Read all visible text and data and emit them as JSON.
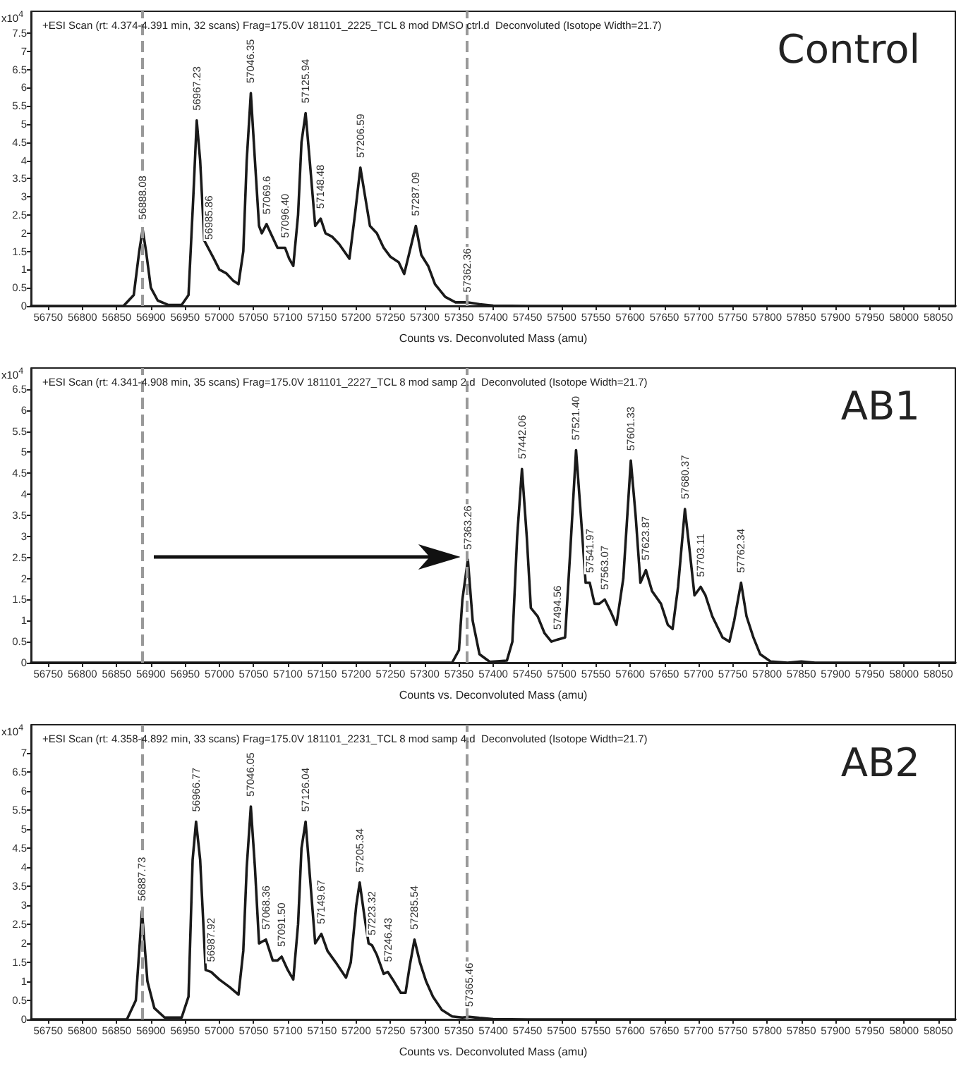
{
  "chart_data": [
    {
      "type": "line",
      "title": "Control",
      "subtitle": "+ESI Scan (rt: 4.374-4.391 min, 32 scans) Frag=175.0V 181101_2225_TCL 8 mod DMSO ctrl.d  Deconvoluted (Isotope Width=21.7)",
      "xlabel": "Counts vs. Deconvoluted Mass (amu)",
      "ylabel": "x10$^{4}$",
      "x": [
        56725,
        56860,
        56875,
        56883,
        56888,
        56893,
        56900,
        56910,
        56925,
        56945,
        56955,
        56962,
        56967,
        56972,
        56978,
        56985,
        56992,
        57000,
        57010,
        57020,
        57028,
        57035,
        57040,
        57046,
        57052,
        57058,
        57062,
        57069,
        57075,
        57085,
        57096,
        57102,
        57108,
        57115,
        57120,
        57126,
        57132,
        57140,
        57148,
        57155,
        57165,
        57175,
        57190,
        57198,
        57206,
        57213,
        57220,
        57230,
        57240,
        57250,
        57262,
        57270,
        57278,
        57287,
        57295,
        57305,
        57315,
        57330,
        57345,
        57362,
        57380,
        57400,
        57450,
        58075
      ],
      "series": [
        {
          "color": "#1a1a1a",
          "values": [
            0,
            0,
            0.3,
            1.5,
            2.1,
            1.5,
            0.5,
            0.15,
            0.03,
            0.03,
            0.3,
            3.0,
            5.1,
            4.0,
            1.8,
            1.55,
            1.3,
            1.0,
            0.9,
            0.7,
            0.6,
            1.5,
            4.0,
            5.85,
            4.0,
            2.2,
            2.0,
            2.25,
            2.0,
            1.6,
            1.6,
            1.3,
            1.1,
            2.5,
            4.5,
            5.3,
            4.0,
            2.2,
            2.4,
            2.0,
            1.9,
            1.7,
            1.3,
            2.5,
            3.8,
            3.0,
            2.2,
            2.0,
            1.6,
            1.35,
            1.2,
            0.88,
            1.5,
            2.2,
            1.4,
            1.1,
            0.6,
            0.25,
            0.1,
            0.1,
            0.05,
            0.01,
            0,
            0
          ]
        }
      ],
      "annotations": [
        {
          "text": "56888.08",
          "x": 56888,
          "y": 2.1
        },
        {
          "text": "56967.23",
          "x": 56967,
          "y": 5.1
        },
        {
          "text": "56985.86",
          "x": 56985,
          "y": 1.55
        },
        {
          "text": "57046.35",
          "x": 57046,
          "y": 5.85
        },
        {
          "text": "57069.6",
          "x": 57069,
          "y": 2.25
        },
        {
          "text": "57096.40",
          "x": 57096,
          "y": 1.6
        },
        {
          "text": "57125.94",
          "x": 57126,
          "y": 5.3
        },
        {
          "text": "57148.48",
          "x": 57148,
          "y": 2.4
        },
        {
          "text": "57206.59",
          "x": 57206,
          "y": 3.8
        },
        {
          "text": "57287.09",
          "x": 57287,
          "y": 2.2
        },
        {
          "text": "57362.36",
          "x": 57362,
          "y": 0.1
        }
      ],
      "ref_lines": [
        {
          "axis": "x",
          "value": 56887,
          "color": "#999999",
          "line_style": "dashed"
        },
        {
          "axis": "x",
          "value": 57362,
          "color": "#999999",
          "line_style": "dashed"
        }
      ],
      "xlim": [
        56725,
        58075
      ],
      "xticks": [
        56750,
        56800,
        56850,
        56900,
        56950,
        57000,
        57050,
        57100,
        57150,
        57200,
        57250,
        57300,
        57350,
        57400,
        57450,
        57500,
        57550,
        57600,
        57650,
        57700,
        57750,
        57800,
        57850,
        57900,
        57950,
        58000,
        58050
      ],
      "ylim": [
        0,
        8.1
      ],
      "yticks": [
        0,
        0.5,
        1,
        1.5,
        2,
        2.5,
        3,
        3.5,
        4,
        4.5,
        5,
        5.5,
        6,
        6.5,
        7,
        7.5
      ],
      "grid": false,
      "marker": "none",
      "line_style": "solid"
    },
    {
      "type": "line",
      "title": "AB1",
      "subtitle": "+ESI Scan (rt: 4.341-4.908 min, 35 scans) Frag=175.0V 181101_2227_TCL 8 mod samp 2.d  Deconvoluted (Isotope Width=21.7)",
      "xlabel": "Counts vs. Deconvoluted Mass (amu)",
      "ylabel": "x10$^{4}$",
      "x": [
        56725,
        57340,
        57350,
        57355,
        57363,
        57370,
        57380,
        57395,
        57420,
        57428,
        57435,
        57442,
        57449,
        57455,
        57465,
        57475,
        57485,
        57494,
        57505,
        57512,
        57521,
        57528,
        57535,
        57541,
        57548,
        57555,
        57563,
        57572,
        57580,
        57590,
        57601,
        57608,
        57615,
        57623,
        57632,
        57645,
        57655,
        57662,
        57670,
        57680,
        57688,
        57694,
        57703,
        57710,
        57720,
        57735,
        57745,
        57752,
        57762,
        57770,
        57780,
        57790,
        57805,
        57830,
        57850,
        57870,
        58075
      ],
      "series": [
        {
          "color": "#1a1a1a",
          "values": [
            0,
            0,
            0.3,
            1.5,
            2.45,
            1.0,
            0.2,
            0.02,
            0.05,
            0.5,
            3.0,
            4.6,
            3.0,
            1.3,
            1.1,
            0.7,
            0.5,
            0.55,
            0.6,
            2.5,
            5.05,
            3.5,
            1.9,
            1.9,
            1.4,
            1.4,
            1.5,
            1.2,
            0.9,
            2.0,
            4.8,
            3.5,
            1.9,
            2.2,
            1.7,
            1.4,
            0.9,
            0.8,
            1.8,
            3.65,
            2.5,
            1.6,
            1.8,
            1.6,
            1.1,
            0.6,
            0.5,
            1.0,
            1.9,
            1.1,
            0.6,
            0.2,
            0.03,
            0,
            0.03,
            0,
            0
          ]
        }
      ],
      "annotations": [
        {
          "text": "57363.26",
          "x": 57363,
          "y": 2.45
        },
        {
          "text": "57442.06",
          "x": 57442,
          "y": 4.6
        },
        {
          "text": "57494.56",
          "x": 57494,
          "y": 0.55
        },
        {
          "text": "57521.40",
          "x": 57521,
          "y": 5.05
        },
        {
          "text": "57541.97",
          "x": 57541,
          "y": 1.9
        },
        {
          "text": "57563.07",
          "x": 57563,
          "y": 1.5
        },
        {
          "text": "57601.33",
          "x": 57601,
          "y": 4.8
        },
        {
          "text": "57623.87",
          "x": 57623,
          "y": 2.2
        },
        {
          "text": "57680.37",
          "x": 57680,
          "y": 3.65
        },
        {
          "text": "57703.11",
          "x": 57703,
          "y": 1.8
        },
        {
          "text": "57762.34",
          "x": 57762,
          "y": 1.9
        }
      ],
      "ref_lines": [
        {
          "axis": "x",
          "value": 56887,
          "color": "#999999",
          "line_style": "dashed"
        },
        {
          "axis": "x",
          "value": 57362,
          "color": "#999999",
          "line_style": "dashed"
        }
      ],
      "xlim": [
        56725,
        58075
      ],
      "xticks": [
        56750,
        56800,
        56850,
        56900,
        56950,
        57000,
        57050,
        57100,
        57150,
        57200,
        57250,
        57300,
        57350,
        57400,
        57450,
        57500,
        57550,
        57600,
        57650,
        57700,
        57750,
        57800,
        57850,
        57900,
        57950,
        58000,
        58050
      ],
      "ylim": [
        0,
        7
      ],
      "yticks": [
        0,
        0.5,
        1,
        1.5,
        2,
        2.5,
        3,
        3.5,
        4,
        4.5,
        5,
        5.5,
        6,
        6.5
      ],
      "grid": false,
      "marker": "none",
      "line_style": "solid"
    },
    {
      "type": "line",
      "title": "AB2",
      "subtitle": "+ESI Scan (rt: 4.358-4.892 min, 33 scans) Frag=175.0V 181101_2231_TCL 8 mod samp 4.d  Deconvoluted (Isotope Width=21.7)",
      "xlabel": "Counts vs. Deconvoluted Mass (amu)",
      "ylabel": "x10$^{4}$",
      "x": [
        56725,
        56865,
        56878,
        56887,
        56895,
        56905,
        56920,
        56945,
        56955,
        56961,
        56966,
        56972,
        56980,
        56988,
        57000,
        57015,
        57028,
        57035,
        57040,
        57046,
        57052,
        57058,
        57068,
        57078,
        57085,
        57091,
        57100,
        57108,
        57115,
        57120,
        57126,
        57133,
        57140,
        57149,
        57158,
        57170,
        57185,
        57192,
        57200,
        57205,
        57212,
        57218,
        57223,
        57230,
        57240,
        57246,
        57255,
        57265,
        57272,
        57278,
        57285,
        57293,
        57302,
        57312,
        57325,
        57340,
        57355,
        57365,
        57380,
        57400,
        57450,
        58075
      ],
      "series": [
        {
          "color": "#1a1a1a",
          "values": [
            0,
            0,
            0.5,
            2.85,
            1.0,
            0.3,
            0.05,
            0.05,
            0.6,
            4.2,
            5.2,
            4.2,
            1.3,
            1.25,
            1.05,
            0.85,
            0.65,
            1.8,
            4.0,
            5.6,
            4.0,
            2.0,
            2.1,
            1.55,
            1.55,
            1.65,
            1.3,
            1.05,
            2.5,
            4.5,
            5.2,
            3.6,
            2.0,
            2.25,
            1.8,
            1.5,
            1.1,
            1.5,
            3.0,
            3.6,
            2.7,
            2.0,
            1.95,
            1.7,
            1.2,
            1.25,
            1.0,
            0.7,
            0.7,
            1.4,
            2.1,
            1.5,
            1.0,
            0.6,
            0.25,
            0.08,
            0.05,
            0.07,
            0.04,
            0.01,
            0,
            0
          ]
        }
      ],
      "annotations": [
        {
          "text": "56887.73",
          "x": 56887,
          "y": 2.85
        },
        {
          "text": "56966.77",
          "x": 56966,
          "y": 5.2
        },
        {
          "text": "56987.92",
          "x": 56988,
          "y": 1.25
        },
        {
          "text": "57046.05",
          "x": 57046,
          "y": 5.6
        },
        {
          "text": "57068.36",
          "x": 57068,
          "y": 2.1
        },
        {
          "text": "57091.50",
          "x": 57091,
          "y": 1.65
        },
        {
          "text": "57126.04",
          "x": 57126,
          "y": 5.2
        },
        {
          "text": "57149.67",
          "x": 57149,
          "y": 2.25
        },
        {
          "text": "57205.34",
          "x": 57205,
          "y": 3.6
        },
        {
          "text": "57223.32",
          "x": 57223,
          "y": 1.95
        },
        {
          "text": "57246.43",
          "x": 57246,
          "y": 1.25
        },
        {
          "text": "57285.54",
          "x": 57285,
          "y": 2.1
        },
        {
          "text": "57365.46",
          "x": 57365,
          "y": 0.07
        }
      ],
      "ref_lines": [
        {
          "axis": "x",
          "value": 56887,
          "color": "#999999",
          "line_style": "dashed"
        },
        {
          "axis": "x",
          "value": 57362,
          "color": "#999999",
          "line_style": "dashed"
        }
      ],
      "xlim": [
        56725,
        58075
      ],
      "xticks": [
        56750,
        56800,
        56850,
        56900,
        56950,
        57000,
        57050,
        57100,
        57150,
        57200,
        57250,
        57300,
        57350,
        57400,
        57450,
        57500,
        57550,
        57600,
        57650,
        57700,
        57750,
        57800,
        57850,
        57900,
        57950,
        58000,
        58050
      ],
      "ylim": [
        0,
        7.75
      ],
      "yticks": [
        0,
        0.5,
        1,
        1.5,
        2,
        2.5,
        3,
        3.5,
        4,
        4.5,
        5,
        5.5,
        6,
        6.5,
        7
      ],
      "grid": false,
      "marker": "none",
      "line_style": "solid"
    }
  ]
}
